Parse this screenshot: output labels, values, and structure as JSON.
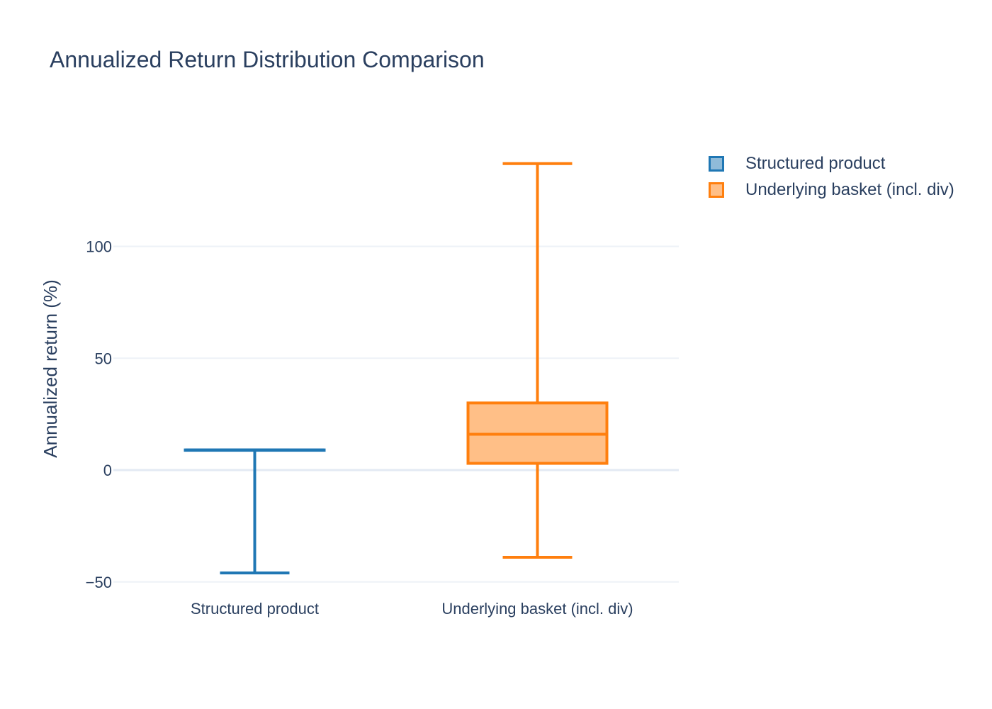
{
  "chart_data": {
    "type": "box",
    "title": "Annualized Return Distribution Comparison",
    "xlabel": "",
    "ylabel": "Annualized return (%)",
    "ylim": [
      -53,
      150
    ],
    "yticks": [
      -50,
      0,
      50,
      100
    ],
    "ytick_labels": [
      "−50",
      "0",
      "50",
      "100"
    ],
    "grid": true,
    "legend_position": "top-right",
    "categories": [
      "Structured product",
      "Underlying basket (incl. div)"
    ],
    "series": [
      {
        "name": "Structured product",
        "color": "#1f77b4",
        "fill": "#8fbbd9",
        "min": -46,
        "q1": 9,
        "median": 9,
        "q3": 9,
        "max": 9
      },
      {
        "name": "Underlying basket (incl. div)",
        "color": "#ff7f0e",
        "fill": "#ffbf87",
        "min": -39,
        "q1": 3,
        "median": 16,
        "q3": 30,
        "max": 137
      }
    ]
  }
}
